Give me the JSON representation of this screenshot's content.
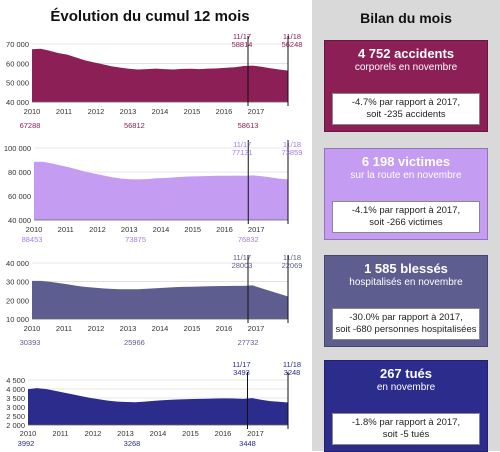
{
  "left_title": "Évolution du cumul 12 mois",
  "right_title": "Bilan du mois",
  "chart_data": [
    {
      "type": "area",
      "color": "#8c1f56",
      "label_color": "#8c1f56",
      "years": [
        "2010",
        "2011",
        "2012",
        "2013",
        "2014",
        "2015",
        "2016",
        "2017"
      ],
      "ylim": [
        40000,
        70000
      ],
      "yticks": [
        "40 000",
        "50 000",
        "60 000",
        "70 000"
      ],
      "ytick_values": [
        40000,
        50000,
        60000,
        70000
      ],
      "series": [
        67288,
        67500,
        66500,
        65300,
        64500,
        63000,
        61500,
        60500,
        59500,
        58500,
        57800,
        57200,
        56812,
        57000,
        57300,
        57000,
        56800,
        57100,
        57200,
        57000,
        57300,
        57400,
        57700,
        58000,
        58613,
        58814,
        58200,
        57500,
        56800,
        56248
      ],
      "markers": [
        {
          "label": "11/17",
          "value": "58814"
        },
        {
          "label": "11/18",
          "value": "56248"
        }
      ],
      "bottom_values": [
        "67288",
        "56812",
        "58613"
      ]
    },
    {
      "type": "area",
      "color": "#c49cf2",
      "label_color": "#a67ce0",
      "years": [
        "2010",
        "2011",
        "2012",
        "2013",
        "2014",
        "2015",
        "2016",
        "2017"
      ],
      "ylim": [
        40000,
        100000
      ],
      "yticks": [
        "40 000",
        "60 000",
        "80 000",
        "100 000"
      ],
      "ytick_values": [
        40000,
        60000,
        80000,
        100000
      ],
      "series": [
        88453,
        88600,
        87200,
        85500,
        84000,
        82000,
        80000,
        78500,
        77000,
        75500,
        74500,
        74000,
        73875,
        74200,
        74800,
        75000,
        75500,
        76000,
        76300,
        76500,
        76700,
        76800,
        76900,
        77000,
        76832,
        77131,
        76500,
        75500,
        74500,
        73859
      ],
      "markers": [
        {
          "label": "11/17",
          "value": "77131"
        },
        {
          "label": "11/18",
          "value": "73859"
        }
      ],
      "bottom_values": [
        "88453",
        "73875",
        "76832"
      ]
    },
    {
      "type": "area",
      "color": "#5e5d8f",
      "label_color": "#5e5d8f",
      "years": [
        "2010",
        "2011",
        "2012",
        "2013",
        "2014",
        "2015",
        "2016",
        "2017"
      ],
      "ylim": [
        10000,
        40000
      ],
      "yticks": [
        "10 000",
        "20 000",
        "30 000",
        "40 000"
      ],
      "ytick_values": [
        10000,
        20000,
        30000,
        40000
      ],
      "series": [
        30393,
        30400,
        30000,
        29300,
        28600,
        27800,
        27200,
        26800,
        26400,
        26100,
        25900,
        25950,
        25966,
        26200,
        26500,
        26700,
        27000,
        27200,
        27300,
        27400,
        27500,
        27600,
        27700,
        27750,
        27732,
        28003,
        26500,
        25000,
        23500,
        22069
      ],
      "markers": [
        {
          "label": "11/17",
          "value": "28003"
        },
        {
          "label": "11/18",
          "value": "22069"
        }
      ],
      "bottom_values": [
        "30393",
        "25966",
        "27732"
      ]
    },
    {
      "type": "area",
      "color": "#2b2c8c",
      "label_color": "#2b2c8c",
      "years": [
        "2010",
        "2011",
        "2012",
        "2013",
        "2014",
        "2015",
        "2016",
        "2017"
      ],
      "ylim": [
        2000,
        4500
      ],
      "yticks": [
        "2 000",
        "2 500",
        "3 000",
        "3 500",
        "4 000",
        "4 500"
      ],
      "ytick_values": [
        2000,
        2500,
        3000,
        3500,
        4000,
        4500
      ],
      "series": [
        3992,
        4050,
        4000,
        3900,
        3800,
        3700,
        3600,
        3500,
        3420,
        3350,
        3300,
        3280,
        3268,
        3300,
        3340,
        3380,
        3400,
        3420,
        3440,
        3450,
        3460,
        3470,
        3480,
        3470,
        3448,
        3493,
        3400,
        3330,
        3290,
        3248
      ],
      "markers": [
        {
          "label": "11/17",
          "value": "3493"
        },
        {
          "label": "11/18",
          "value": "3248"
        }
      ],
      "bottom_values": [
        "3992",
        "3268",
        "3448"
      ]
    }
  ],
  "cards": [
    {
      "color": "#8c1f56",
      "main": "4 752 accidents",
      "sub1": "corporels en novembre",
      "sub2": "",
      "box1": "-4.7% par rapport à 2017,",
      "box2": "soit -235 accidents"
    },
    {
      "color": "#c49cf2",
      "main": "6 198 victimes",
      "sub1": "sur la route en novembre",
      "sub2": "",
      "box1": "-4.1% par rapport à 2017,",
      "box2": "soit -266 victimes"
    },
    {
      "color": "#5e5d8f",
      "main": "1 585 blessés",
      "sub1": "hospitalisés en novembre",
      "sub2": "",
      "box1": "-30.0% par rapport à 2017,",
      "box2": "soit -680 personnes hospitalisées"
    },
    {
      "color": "#2b2c8c",
      "main": "267 tués",
      "sub1": "en novembre",
      "sub2": "",
      "box1": "-1.8% par rapport à 2017,",
      "box2": "soit -5 tués"
    }
  ]
}
